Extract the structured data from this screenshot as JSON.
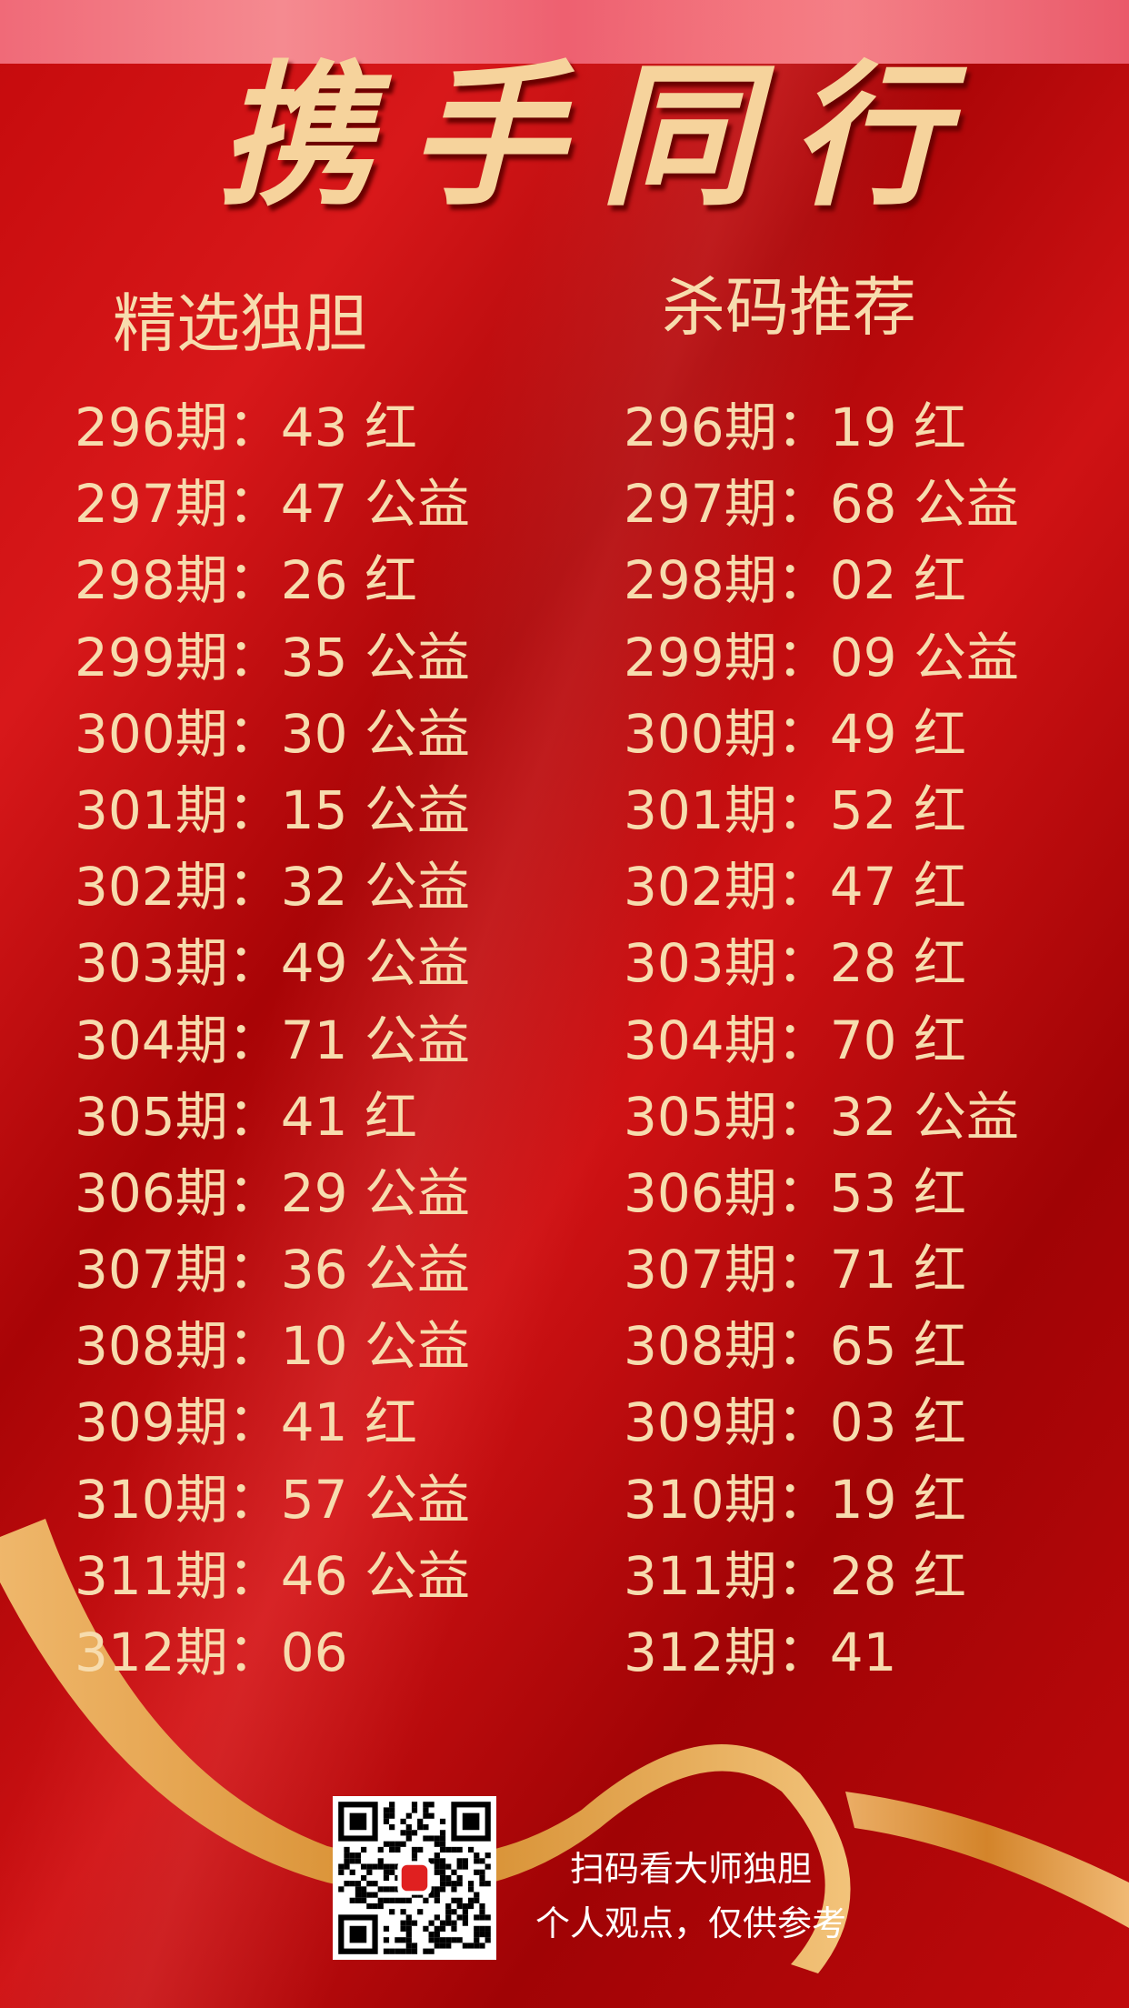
{
  "title": "携手同行",
  "left": {
    "heading": "精选独胆",
    "rows": [
      "296期：43 红",
      "297期：47 公益",
      "298期：26 红",
      "299期：35 公益",
      "300期：30 公益",
      "301期：15 公益",
      "302期：32 公益",
      "303期：49 公益",
      "304期：71 公益",
      "305期：41 红",
      "306期：29 公益",
      "307期：36 公益",
      "308期：10 公益",
      "309期：41 红",
      "310期：57 公益",
      "311期：46 公益",
      "312期：06"
    ]
  },
  "right": {
    "heading": "杀码推荐",
    "rows": [
      "296期：19 红",
      "297期：68 公益",
      "298期：02 红",
      "299期：09 公益",
      "300期：49 红",
      "301期：52 红",
      "302期：47 红",
      "303期：28 红",
      "304期：70 红",
      "305期：32 公益",
      "306期：53 红",
      "307期：71 红",
      "308期：65 红",
      "309期：03 红",
      "310期：19 红",
      "311期：28 红",
      "312期：41"
    ]
  },
  "footer": {
    "line1": "扫码看大师独胆",
    "line2": "个人观点，仅供参考"
  },
  "colors": {
    "background": "#c00a0c",
    "text": "#f7dcae",
    "ribbon": "#e0a040"
  }
}
